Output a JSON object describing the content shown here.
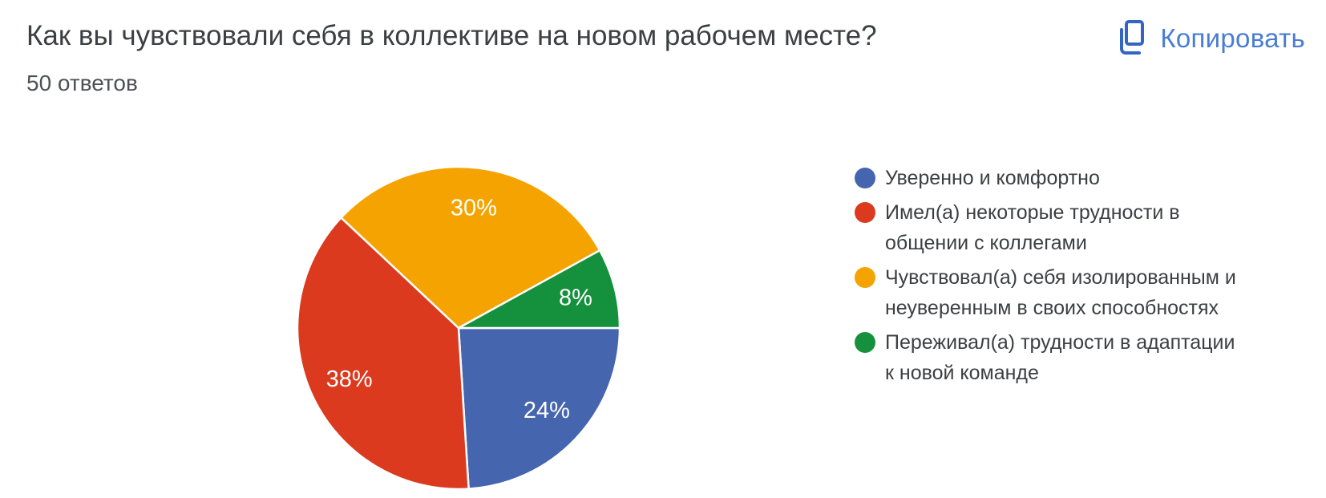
{
  "header": {
    "title": "Как вы чувствовали себя в коллективе на новом рабочем месте?",
    "responses": "50 ответов",
    "copy_label": "Копировать",
    "copy_color": "#4a7dd2"
  },
  "chart_data": {
    "type": "pie",
    "title": "Как вы чувствовали себя в коллективе на новом рабочем месте?",
    "subtitle": "50 ответов",
    "total_responses": 50,
    "start_angle_deg": 0,
    "direction": "clockwise",
    "legend_position": "right",
    "value_label_format": "percent",
    "label_color": "#ffffff",
    "slices": [
      {
        "label": "Уверенно и комфортно",
        "percent": 24,
        "color": "#4565ae"
      },
      {
        "label": "Имел(а) некоторые трудности в общении с коллегами",
        "percent": 38,
        "color": "#db3a1f"
      },
      {
        "label": "Чувствовал(а) себя изолированным и неуверенным в своих способностях",
        "percent": 30,
        "color": "#f5a300"
      },
      {
        "label": "Переживал(а) трудности в адаптации к новой команде",
        "percent": 8,
        "color": "#15913d"
      }
    ]
  }
}
